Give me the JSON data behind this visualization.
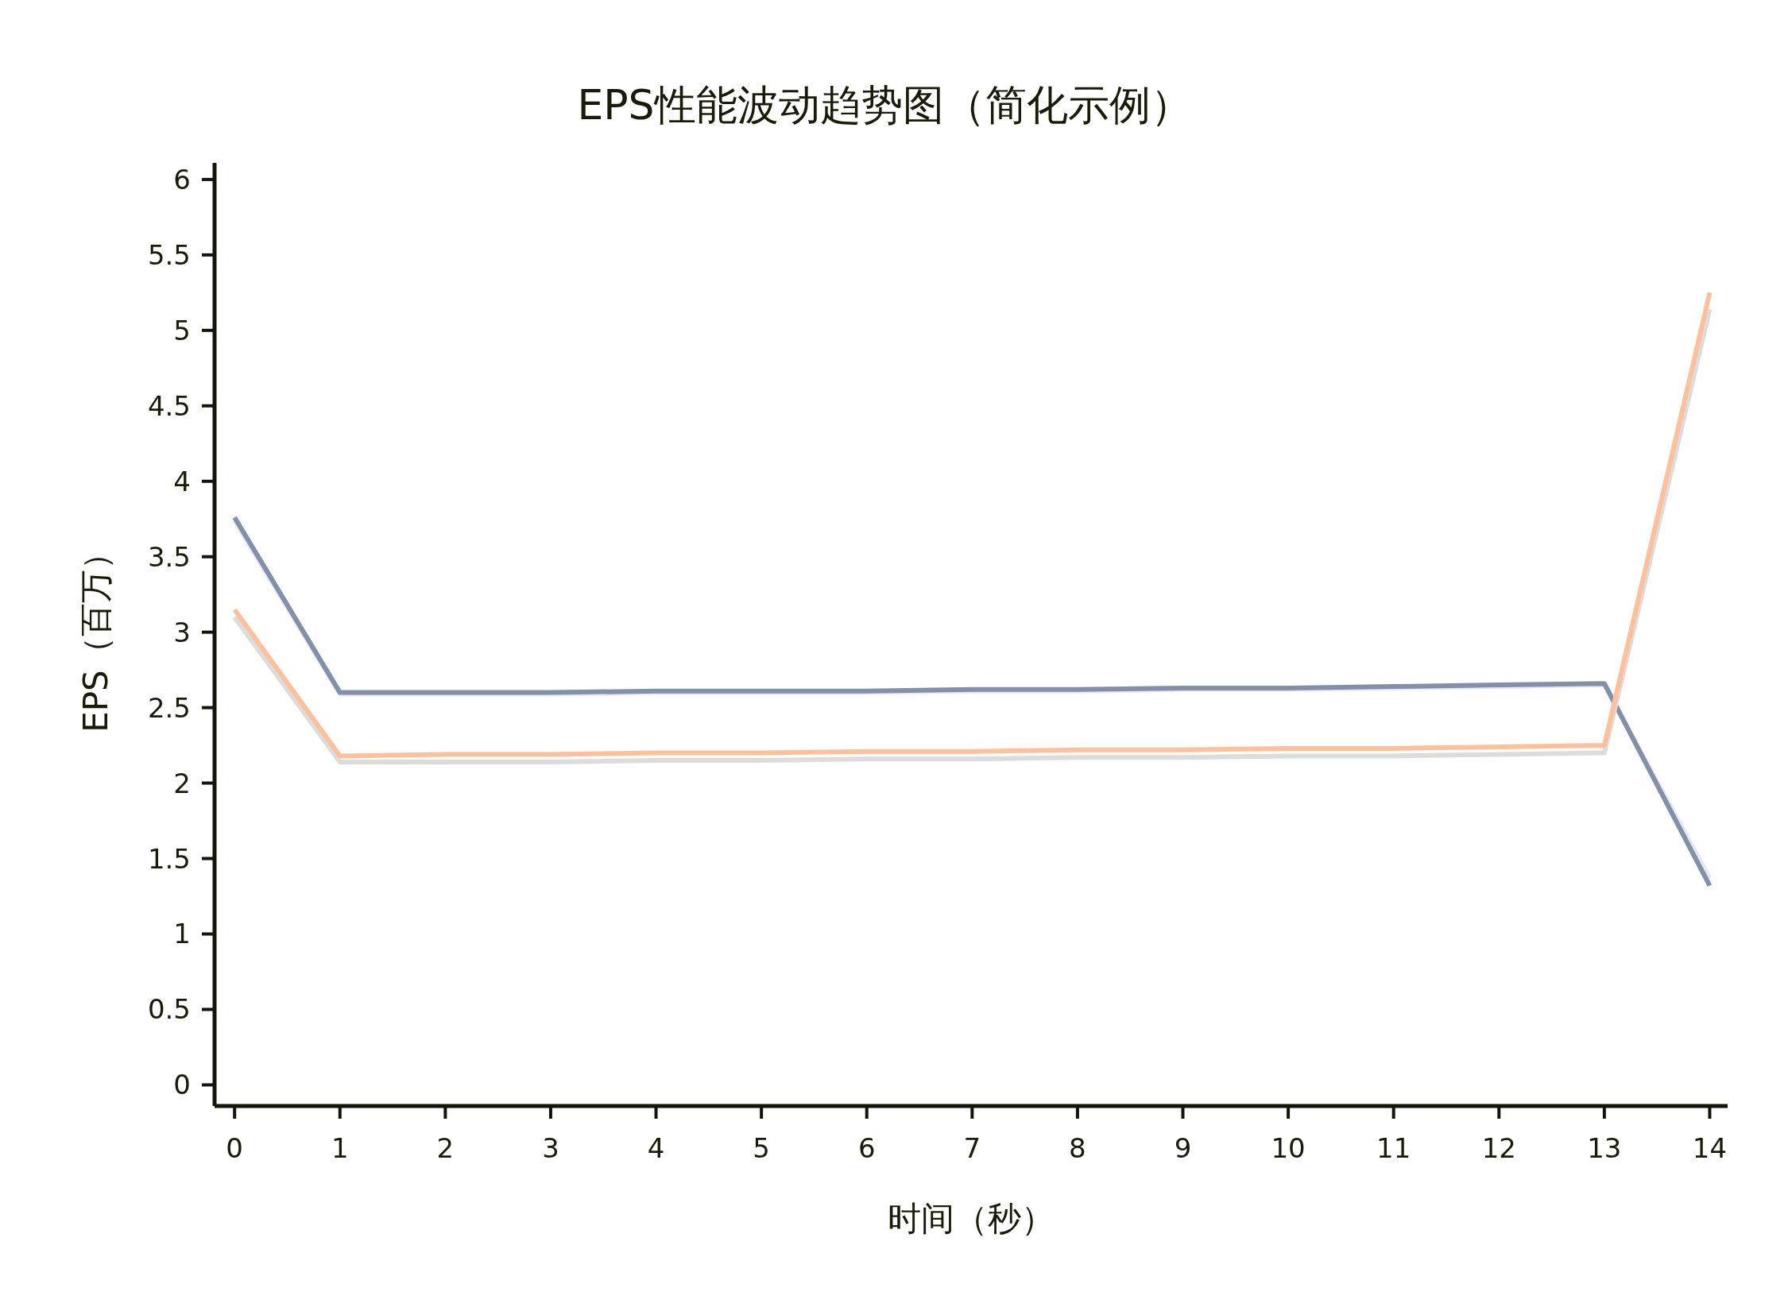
{
  "chart_data": {
    "type": "line",
    "title": "EPS性能波动趋势图（简化示例）",
    "xlabel": "时间（秒）",
    "ylabel": "EPS（百万）",
    "x": [
      0,
      1,
      2,
      3,
      4,
      5,
      6,
      7,
      8,
      9,
      10,
      11,
      12,
      13,
      14
    ],
    "series": [
      {
        "color": "#e6e6fa",
        "values": [
          3.74,
          2.59,
          2.59,
          2.59,
          2.6,
          2.6,
          2.6,
          2.61,
          2.61,
          2.62,
          2.62,
          2.63,
          2.64,
          2.65,
          1.37
        ]
      },
      {
        "color": "#8290a8",
        "values": [
          3.76,
          2.6,
          2.6,
          2.6,
          2.61,
          2.61,
          2.61,
          2.62,
          2.62,
          2.63,
          2.63,
          2.64,
          2.65,
          2.66,
          1.32
        ]
      },
      {
        "color": "#dcdcdc",
        "values": [
          3.1,
          2.14,
          2.14,
          2.14,
          2.15,
          2.15,
          2.16,
          2.16,
          2.17,
          2.17,
          2.18,
          2.18,
          2.19,
          2.2,
          5.14
        ]
      },
      {
        "color": "#fec19c",
        "values": [
          3.15,
          2.18,
          2.19,
          2.19,
          2.2,
          2.2,
          2.21,
          2.21,
          2.22,
          2.22,
          2.23,
          2.23,
          2.24,
          2.25,
          5.25
        ]
      }
    ],
    "xlim": [
      -0.19,
      14.17
    ],
    "ylim": [
      -0.14,
      6.11
    ],
    "xticks": [
      0,
      1,
      2,
      3,
      4,
      5,
      6,
      7,
      8,
      9,
      10,
      11,
      12,
      13,
      14
    ],
    "yticks": [
      0,
      0.5,
      1,
      1.5,
      2,
      2.5,
      3,
      3.5,
      4,
      4.5,
      5,
      5.5,
      6
    ],
    "grid": false,
    "marker": "none",
    "line_style": "solid"
  }
}
